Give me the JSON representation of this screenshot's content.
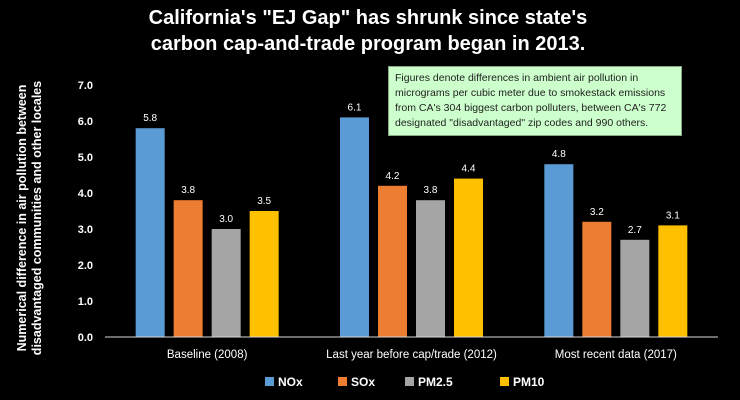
{
  "colors": {
    "background": "#000000",
    "text": "#ffffff",
    "NOx": "#5b9bd5",
    "SOx": "#ed7d31",
    "PM2.5": "#a5a5a5",
    "PM10": "#ffc000",
    "annotation_bg": "#ccffcc"
  },
  "chart_data": {
    "type": "bar",
    "title": [
      "California's \"EJ Gap\" has shrunk since state's",
      "carbon cap-and-trade program began in 2013."
    ],
    "ylabel": [
      "Numerical difference in air pollution between",
      "disadvantaged communities and other locales"
    ],
    "xlabel": "",
    "categories": [
      "Baseline (2008)",
      "Last year before cap/trade (2012)",
      "Most recent data (2017)"
    ],
    "series": [
      {
        "name": "NOx",
        "values": [
          5.8,
          6.1,
          4.8
        ]
      },
      {
        "name": "SOx",
        "values": [
          3.8,
          4.2,
          3.2
        ]
      },
      {
        "name": "PM2.5",
        "values": [
          3.0,
          3.8,
          2.7
        ]
      },
      {
        "name": "PM10",
        "values": [
          3.5,
          4.4,
          3.1
        ]
      }
    ],
    "data_labels": [
      [
        "5.8",
        "6.1",
        "4.8"
      ],
      [
        "3.8",
        "4.2",
        "3.2"
      ],
      [
        "3.0",
        "3.8",
        "2.7"
      ],
      [
        "3.5",
        "4.4",
        "3.1"
      ]
    ],
    "ylim": [
      0,
      7
    ],
    "yticks": [
      "0.0",
      "1.0",
      "2.0",
      "3.0",
      "4.0",
      "5.0",
      "6.0",
      "7.0"
    ],
    "grid": false,
    "legend_position": "bottom",
    "annotation": [
      "Figures denote differences in ambient air pollution in",
      "micrograms per cubic meter due to smokestack emissions",
      "from CA's 304 biggest carbon polluters, between CA's 772",
      "designated \"disadvantaged\" zip codes and 990 others."
    ]
  }
}
